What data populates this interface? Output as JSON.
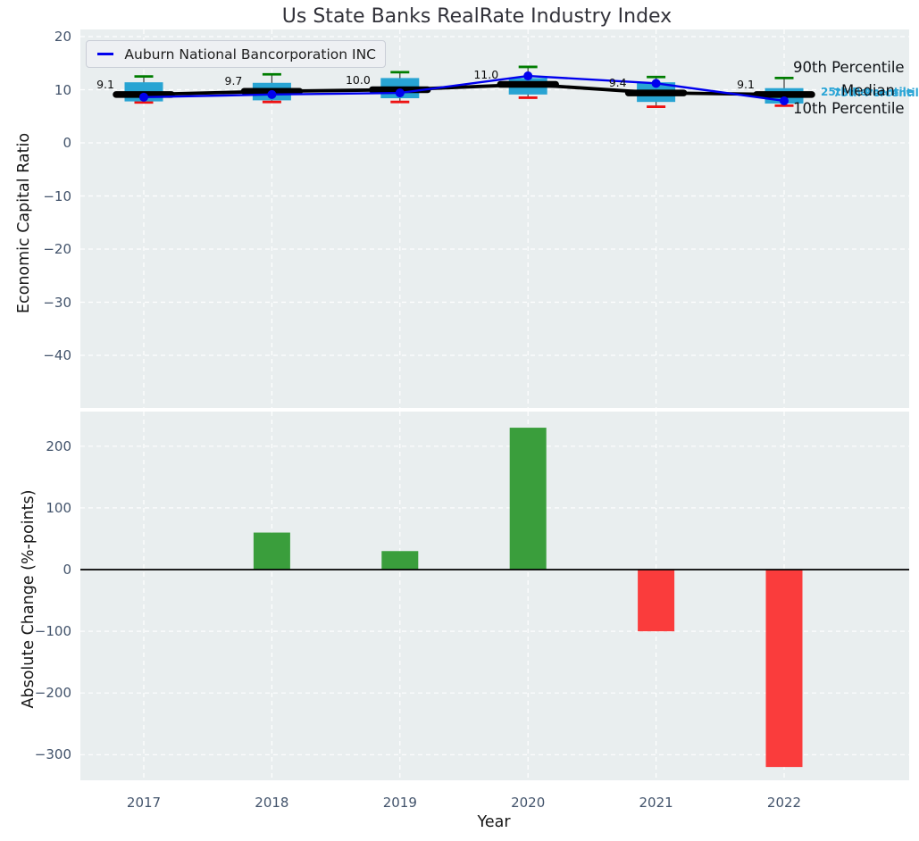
{
  "title": "Us State Banks RealRate Industry Index",
  "chart_data": [
    {
      "type": "box",
      "title": "Us State Banks RealRate Industry Index",
      "ylabel": "Economic Capital Ratio",
      "yticks": [
        20,
        10,
        0,
        -10,
        -20,
        -30,
        -40
      ],
      "ylim": [
        -50,
        21.3
      ],
      "grid": true,
      "categories": [
        "2017",
        "2018",
        "2019",
        "2020",
        "2021",
        "2022"
      ],
      "company_series": {
        "name": "Auburn National Bancorporation INC",
        "color": "#0000ee",
        "values": [
          8.6,
          9.1,
          9.4,
          12.6,
          11.2,
          7.9
        ]
      },
      "median": {
        "color": "#000000",
        "values": [
          9.1,
          9.7,
          10.0,
          11.0,
          9.4,
          9.1
        ],
        "labels": [
          "9.1",
          "9.7",
          "10.0",
          "11.0",
          "9.4",
          "9.1"
        ]
      },
      "p90": [
        12.5,
        12.9,
        13.3,
        14.3,
        12.4,
        12.2
      ],
      "p75": [
        11.4,
        11.3,
        12.2,
        12.2,
        11.4,
        10.3
      ],
      "p25": [
        7.8,
        8.0,
        8.4,
        9.1,
        7.7,
        7.4
      ],
      "p10": [
        7.6,
        7.7,
        7.7,
        8.5,
        6.8,
        7.0
      ],
      "box_color": "#28a4d3",
      "p90_color": "#007d00",
      "p10_color": "#ee1111",
      "whisker_color": "#3c3c3c",
      "legend_position": "upper left",
      "side_labels": [
        {
          "text": "25th Percentile",
          "style": "cyan"
        },
        {
          "text": "75th Percentile",
          "style": "cyan"
        },
        {
          "text": "90th Percentile",
          "style": "black"
        },
        {
          "text": "Median",
          "style": "black"
        },
        {
          "text": "10th Percentile",
          "style": "black"
        }
      ]
    },
    {
      "type": "bar",
      "ylabel": "Absolute Change (%-points)",
      "xlabel": "Year",
      "yticks": [
        200,
        100,
        0,
        -100,
        -200,
        -300
      ],
      "ylim": [
        -340,
        256
      ],
      "grid": true,
      "categories": [
        "2017",
        "2018",
        "2019",
        "2020",
        "2021",
        "2022"
      ],
      "values": [
        null,
        60,
        30,
        230,
        -100,
        -320
      ],
      "positive_color": "#3a9e3c",
      "negative_color": "#fa3c3c",
      "zero_line_color": "#000000",
      "background_color": "#e9eeef",
      "gridline_color": "#ffffff"
    }
  ]
}
